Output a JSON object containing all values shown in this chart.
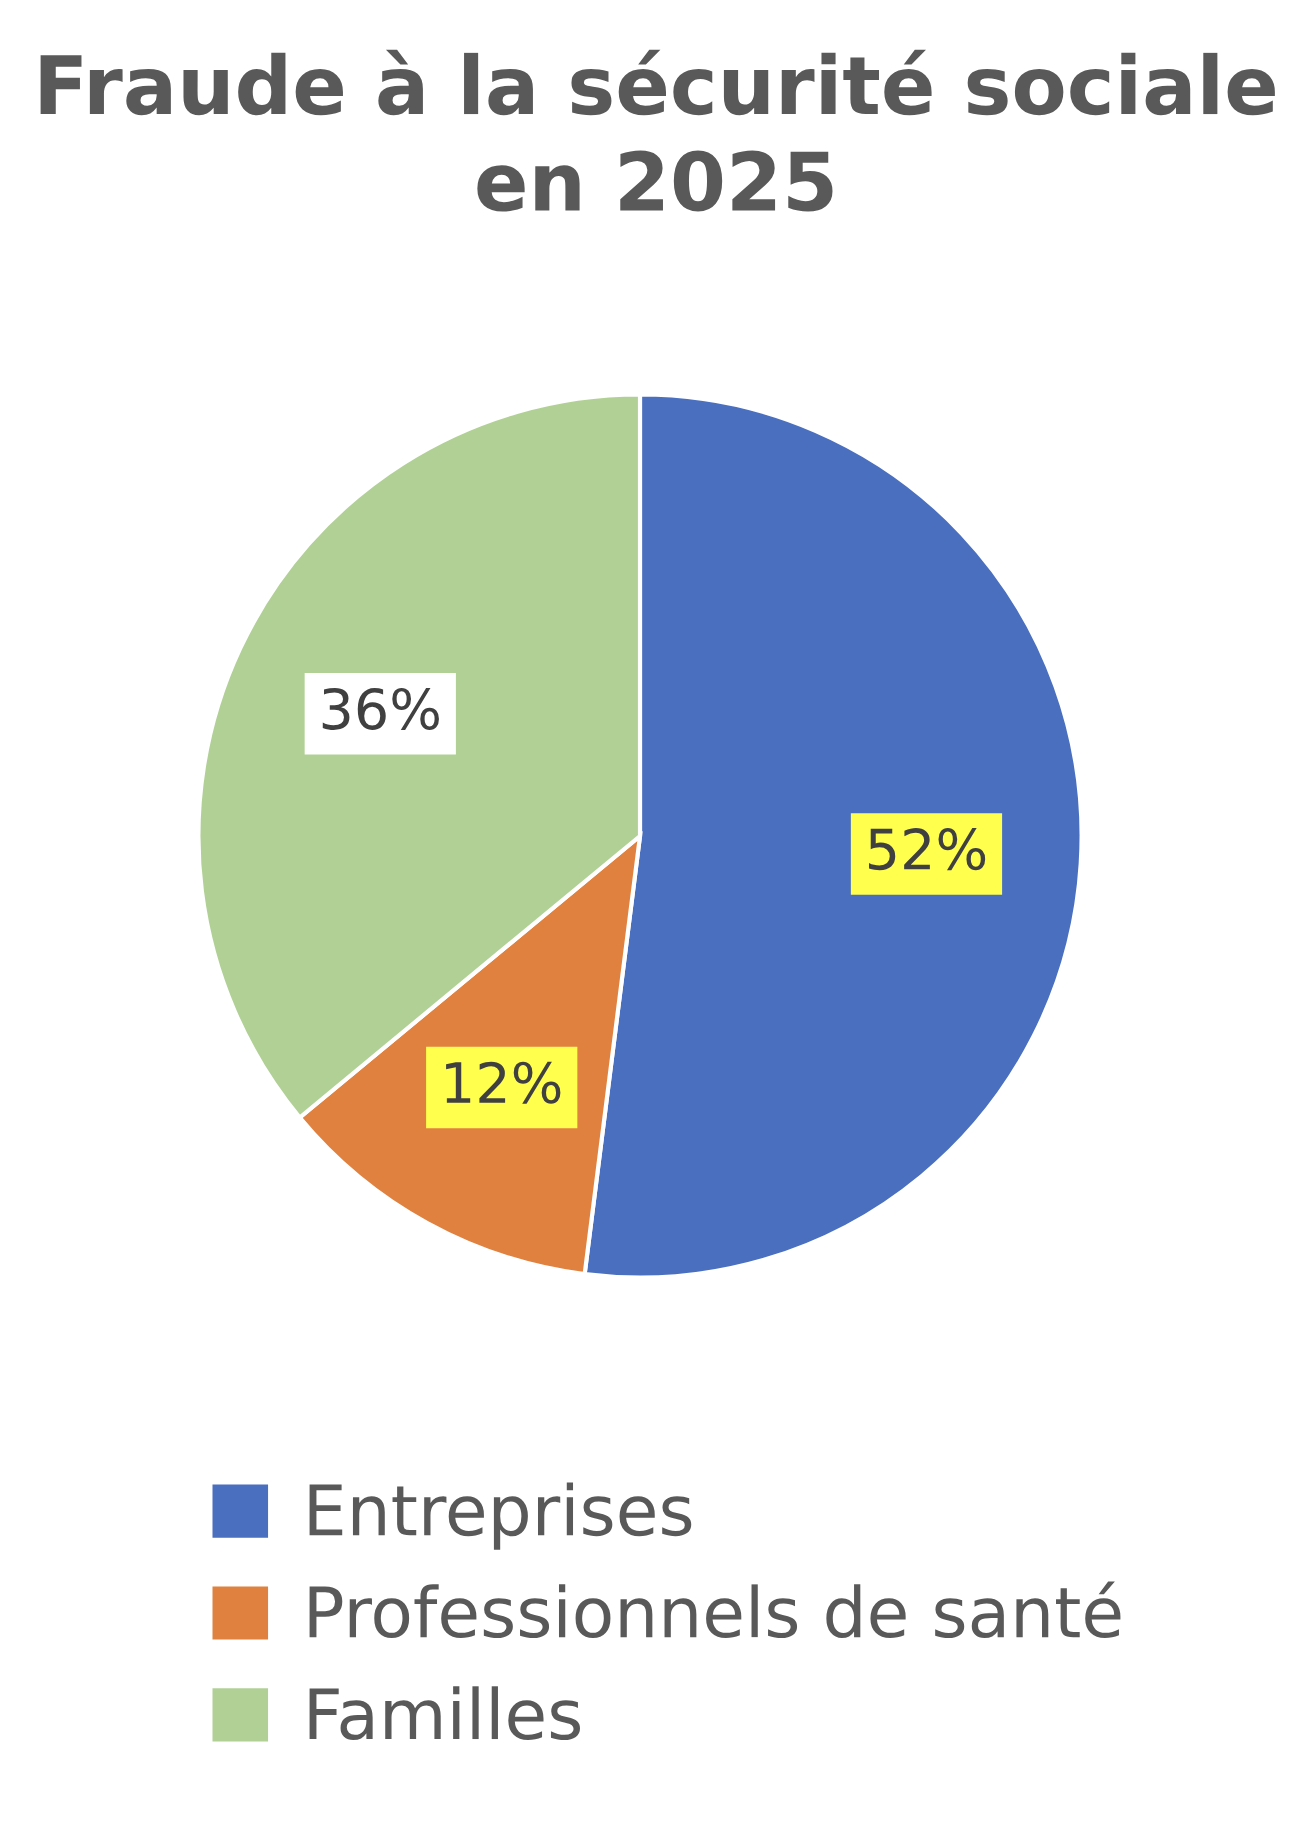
{
  "chart_data": {
    "type": "pie",
    "title": "Fraude à la sécurité sociale en 2025",
    "categories": [
      "Entreprises",
      "Professionnels de santé",
      "Familles"
    ],
    "values": [
      52,
      12,
      36
    ],
    "colors": [
      "#4a6fbf",
      "#e0813f",
      "#b1d095"
    ],
    "value_labels": [
      "52%",
      "12%",
      "36%"
    ],
    "legend": "bottom"
  }
}
